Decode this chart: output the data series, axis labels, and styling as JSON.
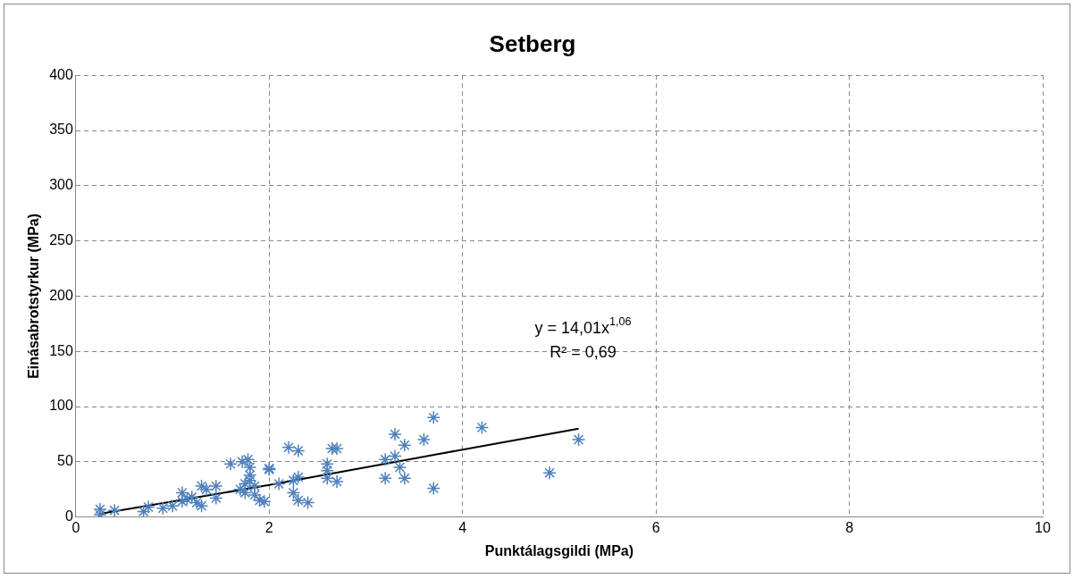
{
  "chart_data": {
    "type": "scatter",
    "title": "Setberg",
    "xlabel": "Punktálagsgildi (MPa)",
    "ylabel": "Einásabrotstyrkur (MPa)",
    "xlim": [
      0,
      10
    ],
    "xticks": [
      0,
      2,
      4,
      6,
      8,
      10
    ],
    "ylim": [
      0,
      400
    ],
    "yticks": [
      0,
      50,
      100,
      150,
      200,
      250,
      300,
      350,
      400
    ],
    "grid": true,
    "legend": false,
    "marker": "cross",
    "annotations": [
      "y = 14,01x$^{1,06}$",
      "R² = 0,69"
    ],
    "series": [
      {
        "color": "#4f81bd",
        "x": [
          0.25,
          0.25,
          0.4,
          0.7,
          0.75,
          0.9,
          1.0,
          1.1,
          1.1,
          1.15,
          1.2,
          1.25,
          1.3,
          1.3,
          1.35,
          1.45,
          1.45,
          1.6,
          1.7,
          1.72,
          1.75,
          1.75,
          1.78,
          1.8,
          1.8,
          1.8,
          1.85,
          1.85,
          1.9,
          1.95,
          2.0,
          2.0,
          2.1,
          2.2,
          2.25,
          2.3,
          2.25,
          2.3,
          2.3,
          2.4,
          2.6,
          2.6,
          2.6,
          2.65,
          2.7,
          2.7,
          3.2,
          3.2,
          3.3,
          3.3,
          3.35,
          3.4,
          3.4,
          3.6,
          3.7,
          3.7,
          4.2,
          4.9,
          5.2
        ],
        "values": [
          7,
          2,
          6,
          5,
          9,
          8,
          10,
          22,
          14,
          16,
          18,
          13,
          28,
          10,
          25,
          28,
          17,
          48,
          25,
          50,
          30,
          22,
          52,
          38,
          45,
          33,
          20,
          28,
          15,
          14,
          43,
          44,
          30,
          63,
          33,
          60,
          22,
          15,
          36,
          13,
          48,
          35,
          42,
          62,
          32,
          62,
          35,
          52,
          55,
          75,
          45,
          35,
          65,
          70,
          90,
          26,
          81,
          40,
          70
        ]
      },
      {
        "type": "line",
        "color": "#000000",
        "marker": "none",
        "x": [
          0.25,
          1,
          2,
          3,
          4,
          5.2
        ],
        "values": [
          3,
          14,
          29,
          45,
          61,
          80
        ]
      }
    ]
  }
}
